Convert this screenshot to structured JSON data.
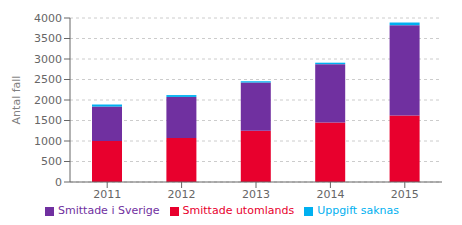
{
  "chart_data": {
    "type": "bar",
    "stacked": true,
    "categories": [
      "2011",
      "2012",
      "2013",
      "2014",
      "2015"
    ],
    "series": [
      {
        "name": "Smittade utomlands",
        "color": "#e8002d",
        "values": [
          1000,
          1075,
          1250,
          1450,
          1625
        ]
      },
      {
        "name": "Smittade i Sverige",
        "color": "#7030a0",
        "values": [
          840,
          1000,
          1175,
          1425,
          2200
        ]
      },
      {
        "name": "Uppgift saknas",
        "color": "#00b0f0",
        "values": [
          50,
          45,
          30,
          35,
          65
        ]
      }
    ],
    "ylabel": "Antal fall",
    "ylim": [
      0,
      4000
    ],
    "yticks": [
      0,
      500,
      1000,
      1500,
      2000,
      2500,
      3000,
      3500,
      4000
    ],
    "grid": true,
    "legend": "bottom"
  }
}
